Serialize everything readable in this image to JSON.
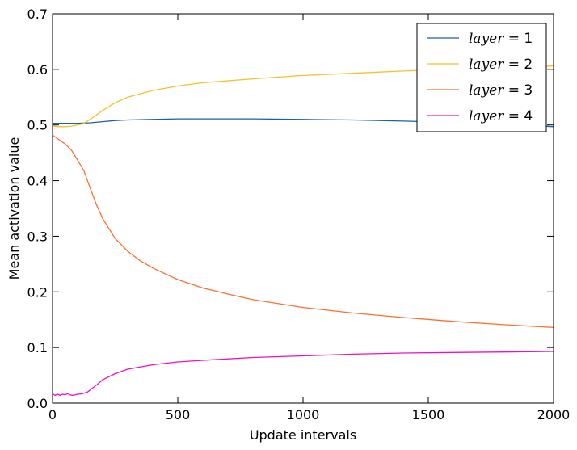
{
  "chart_data": {
    "type": "line",
    "title": "",
    "xlabel": "Update intervals",
    "ylabel": "Mean activation value",
    "xlim": [
      0,
      2000
    ],
    "ylim": [
      0,
      0.7
    ],
    "xticks": [
      0,
      500,
      1000,
      1500,
      2000
    ],
    "xtick_labels": [
      "0",
      "500",
      "1000",
      "1500",
      "2000"
    ],
    "yticks": [
      0,
      0.1,
      0.2,
      0.3,
      0.4,
      0.5,
      0.6,
      0.7
    ],
    "ytick_labels": [
      "0.0",
      "0.1",
      "0.2",
      "0.3",
      "0.4",
      "0.5",
      "0.6",
      "0.7"
    ],
    "grid": false,
    "legend_position": "top-right",
    "series": [
      {
        "name": "layer = 1",
        "legend_var": "layer",
        "legend_rest": " = 1",
        "color": "#1f5fa6",
        "x": [
          0,
          50,
          100,
          150,
          200,
          250,
          300,
          400,
          500,
          600,
          700,
          800,
          1000,
          1200,
          1400,
          1600,
          1800,
          2000
        ],
        "y": [
          0.503,
          0.503,
          0.503,
          0.504,
          0.506,
          0.508,
          0.509,
          0.51,
          0.511,
          0.511,
          0.511,
          0.511,
          0.51,
          0.509,
          0.507,
          0.505,
          0.502,
          0.497
        ]
      },
      {
        "name": "layer = 2",
        "legend_var": "layer",
        "legend_rest": " = 2",
        "color": "#f5c02b",
        "x": [
          0,
          25,
          50,
          75,
          100,
          125,
          150,
          200,
          250,
          300,
          400,
          500,
          600,
          800,
          1000,
          1200,
          1400,
          1600,
          1800,
          2000
        ],
        "y": [
          0.498,
          0.497,
          0.497,
          0.498,
          0.5,
          0.503,
          0.51,
          0.526,
          0.54,
          0.55,
          0.562,
          0.57,
          0.576,
          0.583,
          0.589,
          0.593,
          0.597,
          0.601,
          0.604,
          0.606
        ]
      },
      {
        "name": "layer = 3",
        "legend_var": "layer",
        "legend_rest": " = 3",
        "color": "#fa7030",
        "x": [
          0,
          25,
          50,
          75,
          100,
          125,
          150,
          175,
          200,
          250,
          300,
          350,
          400,
          500,
          600,
          700,
          800,
          1000,
          1200,
          1400,
          1600,
          1800,
          2000
        ],
        "y": [
          0.482,
          0.474,
          0.466,
          0.455,
          0.437,
          0.418,
          0.387,
          0.357,
          0.332,
          0.296,
          0.273,
          0.256,
          0.243,
          0.222,
          0.207,
          0.196,
          0.186,
          0.172,
          0.162,
          0.154,
          0.147,
          0.141,
          0.136
        ]
      },
      {
        "name": "layer = 4",
        "legend_var": "layer",
        "legend_rest": " = 4",
        "color": "#f010c0",
        "x": [
          0,
          10,
          20,
          30,
          40,
          50,
          60,
          70,
          80,
          100,
          120,
          140,
          160,
          180,
          200,
          250,
          300,
          400,
          500,
          600,
          800,
          1000,
          1200,
          1400,
          1600,
          1800,
          2000
        ],
        "y": [
          0.017,
          0.014,
          0.016,
          0.014,
          0.016,
          0.015,
          0.017,
          0.015,
          0.014,
          0.016,
          0.017,
          0.02,
          0.027,
          0.034,
          0.042,
          0.053,
          0.061,
          0.069,
          0.074,
          0.077,
          0.082,
          0.085,
          0.088,
          0.09,
          0.091,
          0.092,
          0.093
        ]
      }
    ]
  }
}
